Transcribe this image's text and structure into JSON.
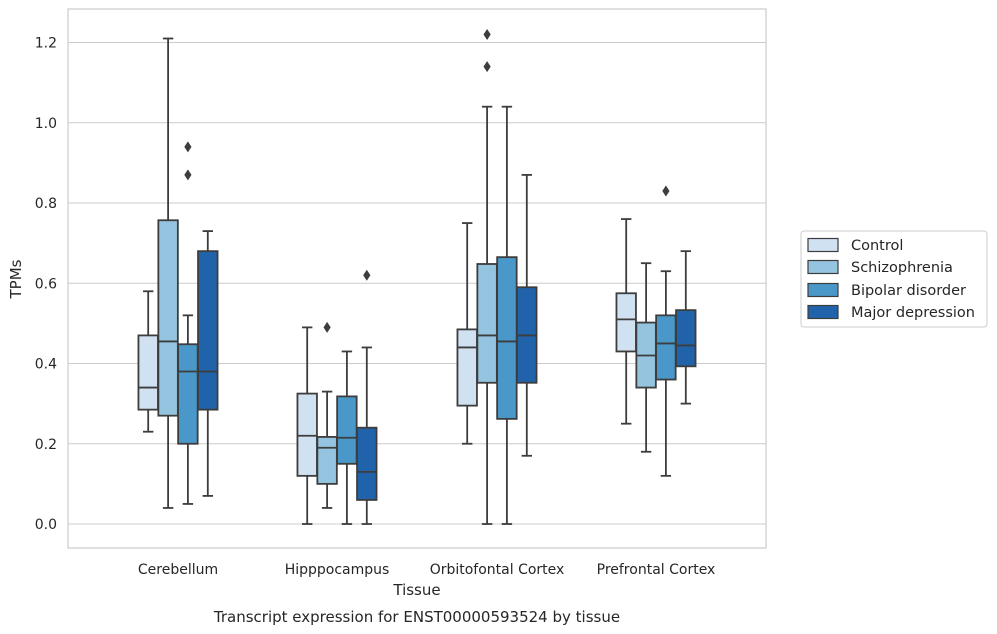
{
  "chart_data": {
    "type": "box",
    "title": "",
    "caption": "Transcript expression for ENST00000593524 by tissue",
    "xlabel": "Tissue",
    "ylabel": "TPMs",
    "ylim": [
      -0.06,
      1.28
    ],
    "yticks": [
      "0.0",
      "0.2",
      "0.4",
      "0.6",
      "0.8",
      "1.0",
      "1.2"
    ],
    "grid": true,
    "legend_position": "right",
    "categories": [
      "Cerebellum",
      "Hipppocampus",
      "Orbitofontal Cortex",
      "Prefrontal Cortex"
    ],
    "series": [
      {
        "name": "Control",
        "color": "#d0e1f2",
        "boxes": [
          {
            "whisker_low": 0.23,
            "q1": 0.285,
            "median": 0.34,
            "q3": 0.47,
            "whisker_high": 0.58,
            "outliers": []
          },
          {
            "whisker_low": 0.0,
            "q1": 0.12,
            "median": 0.22,
            "q3": 0.325,
            "whisker_high": 0.49,
            "outliers": []
          },
          {
            "whisker_low": 0.2,
            "q1": 0.295,
            "median": 0.44,
            "q3": 0.485,
            "whisker_high": 0.75,
            "outliers": []
          },
          {
            "whisker_low": 0.25,
            "q1": 0.43,
            "median": 0.51,
            "q3": 0.575,
            "whisker_high": 0.76,
            "outliers": []
          }
        ]
      },
      {
        "name": "Schizophrenia",
        "color": "#94c4df",
        "boxes": [
          {
            "whisker_low": 0.04,
            "q1": 0.27,
            "median": 0.455,
            "q3": 0.757,
            "whisker_high": 1.21,
            "outliers": []
          },
          {
            "whisker_low": 0.04,
            "q1": 0.1,
            "median": 0.19,
            "q3": 0.217,
            "whisker_high": 0.33,
            "outliers": [
              0.49
            ]
          },
          {
            "whisker_low": 0.0,
            "q1": 0.352,
            "median": 0.47,
            "q3": 0.648,
            "whisker_high": 1.04,
            "outliers": [
              1.14,
              1.22
            ]
          },
          {
            "whisker_low": 0.18,
            "q1": 0.34,
            "median": 0.42,
            "q3": 0.502,
            "whisker_high": 0.65,
            "outliers": []
          }
        ]
      },
      {
        "name": "Bipolar disorder",
        "color": "#4a98c9",
        "boxes": [
          {
            "whisker_low": 0.05,
            "q1": 0.2,
            "median": 0.38,
            "q3": 0.448,
            "whisker_high": 0.52,
            "outliers": [
              0.87,
              0.94
            ]
          },
          {
            "whisker_low": 0.0,
            "q1": 0.15,
            "median": 0.215,
            "q3": 0.318,
            "whisker_high": 0.43,
            "outliers": []
          },
          {
            "whisker_low": 0.0,
            "q1": 0.262,
            "median": 0.455,
            "q3": 0.665,
            "whisker_high": 1.04,
            "outliers": []
          },
          {
            "whisker_low": 0.12,
            "q1": 0.36,
            "median": 0.45,
            "q3": 0.52,
            "whisker_high": 0.63,
            "outliers": [
              0.83
            ]
          }
        ]
      },
      {
        "name": "Major depression",
        "color": "#2163aa",
        "boxes": [
          {
            "whisker_low": 0.07,
            "q1": 0.285,
            "median": 0.38,
            "q3": 0.68,
            "whisker_high": 0.73,
            "outliers": []
          },
          {
            "whisker_low": 0.0,
            "q1": 0.06,
            "median": 0.13,
            "q3": 0.24,
            "whisker_high": 0.44,
            "outliers": [
              0.62
            ]
          },
          {
            "whisker_low": 0.17,
            "q1": 0.352,
            "median": 0.47,
            "q3": 0.59,
            "whisker_high": 0.87,
            "outliers": []
          },
          {
            "whisker_low": 0.3,
            "q1": 0.393,
            "median": 0.445,
            "q3": 0.533,
            "whisker_high": 0.68,
            "outliers": []
          }
        ]
      }
    ]
  },
  "colors": {
    "grid": "#cccccc",
    "frame": "#cccccc",
    "box_edge": "#3d3d3d",
    "text": "#262626"
  }
}
